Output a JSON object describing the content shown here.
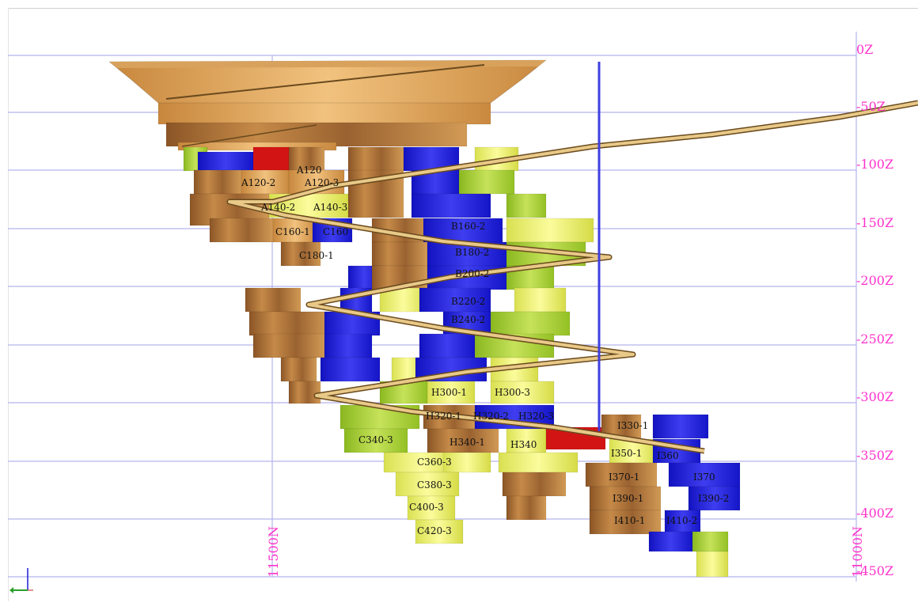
{
  "level_labels": [
    "0Z",
    "-50Z",
    "-100Z",
    "-150Z",
    "-200Z",
    "-250Z",
    "-300Z",
    "-350Z",
    "-400Z",
    "-450Z"
  ],
  "northing_labels": [
    "11500N",
    "11000N"
  ],
  "stope_labels": [
    "A120-2",
    "A120-3",
    "A140-2",
    "A140-3",
    "A120",
    "C160-1",
    "C160",
    "C180-1",
    "B160-2",
    "B180-2",
    "B200-2",
    "B220-2",
    "B240-2",
    "H300-1",
    "H300-3",
    "H320-1",
    "H320-2",
    "H320-3",
    "C340-3",
    "H340-1",
    "H340",
    "C360-3",
    "C380-3",
    "C400-3",
    "C420-3",
    "I330-1",
    "I350-1",
    "I370-1",
    "I390-1",
    "I390-2",
    "I370",
    "I410-1",
    "I410-2",
    "I360"
  ],
  "colors": {
    "grid_line": "#b4b4ee",
    "level_label": "#ff33cc",
    "ramp": "#c9a25a",
    "ore_brown": "#a86a32",
    "ore_tan": "#dba55c",
    "ore_blue": "#1c1cd8",
    "ore_yellow": "#eef06a",
    "ore_green": "#a6cc2a",
    "ore_red": "#d21414",
    "shaft": "#3f3fe0"
  },
  "icons": {
    "axis": "axis-triad-icon"
  }
}
